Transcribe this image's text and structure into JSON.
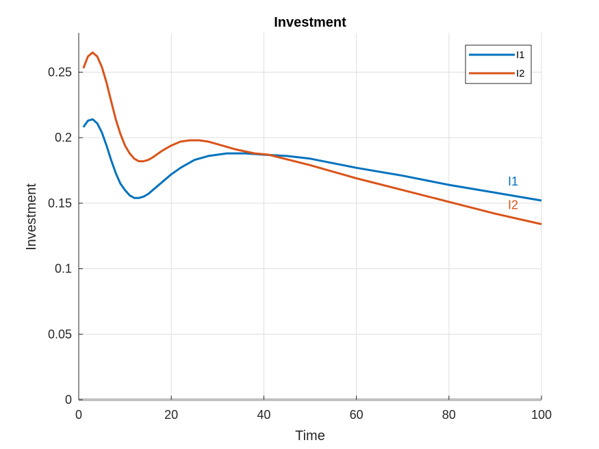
{
  "chart_data": {
    "type": "line",
    "title": "Investment",
    "xlabel": "Time",
    "ylabel": "Investment",
    "xlim": [
      0,
      100
    ],
    "ylim": [
      0,
      0.28
    ],
    "xticks": [
      0,
      20,
      40,
      60,
      80,
      100
    ],
    "xtick_labels": [
      "0",
      "20",
      "40",
      "60",
      "80",
      "100"
    ],
    "yticks": [
      0,
      0.05,
      0.1,
      0.15,
      0.2,
      0.25
    ],
    "ytick_labels": [
      "0",
      "0.05",
      "0.1",
      "0.15",
      "0.2",
      "0.25"
    ],
    "grid": true,
    "legend_position": "top-right",
    "series": [
      {
        "name": "I1",
        "color": "#0072BD",
        "x": [
          1,
          2,
          3,
          4,
          5,
          6,
          7,
          8,
          9,
          10,
          11,
          12,
          13,
          14,
          15,
          16,
          18,
          20,
          22,
          25,
          28,
          32,
          36,
          40,
          45,
          50,
          60,
          70,
          80,
          90,
          100
        ],
        "y": [
          0.208,
          0.213,
          0.214,
          0.211,
          0.204,
          0.194,
          0.183,
          0.173,
          0.165,
          0.16,
          0.156,
          0.154,
          0.154,
          0.155,
          0.157,
          0.16,
          0.166,
          0.172,
          0.177,
          0.183,
          0.186,
          0.188,
          0.188,
          0.187,
          0.186,
          0.184,
          0.177,
          0.171,
          0.164,
          0.158,
          0.152
        ]
      },
      {
        "name": "I2",
        "color": "#D95319",
        "x": [
          1,
          2,
          3,
          4,
          5,
          6,
          7,
          8,
          9,
          10,
          11,
          12,
          13,
          14,
          15,
          16,
          18,
          20,
          22,
          24,
          26,
          28,
          30,
          34,
          38,
          41,
          50,
          60,
          70,
          80,
          90,
          100
        ],
        "y": [
          0.253,
          0.262,
          0.265,
          0.262,
          0.254,
          0.242,
          0.228,
          0.214,
          0.203,
          0.194,
          0.188,
          0.184,
          0.182,
          0.182,
          0.183,
          0.185,
          0.19,
          0.194,
          0.197,
          0.198,
          0.198,
          0.197,
          0.195,
          0.191,
          0.188,
          0.187,
          0.179,
          0.169,
          0.16,
          0.151,
          0.142,
          0.134
        ]
      }
    ],
    "legend": [
      "I1",
      "I2"
    ],
    "end_labels": [
      "I1",
      "I2"
    ]
  }
}
